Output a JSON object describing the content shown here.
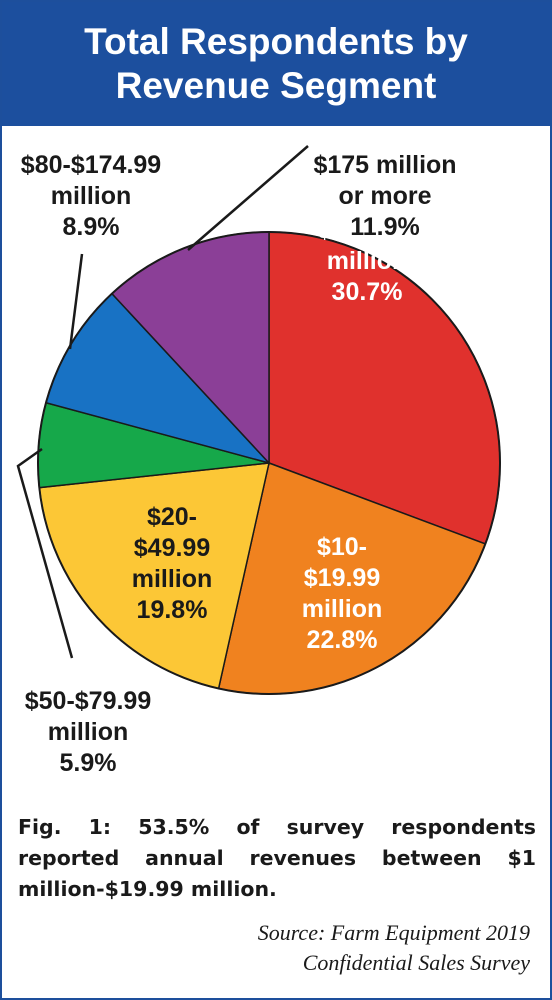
{
  "header": {
    "title": "Total Respondents by Revenue Segment"
  },
  "chart_data": {
    "type": "pie",
    "title": "Total Respondents by Revenue Segment",
    "slices": [
      {
        "label": "$1-$9.99 million",
        "display": "$1-$9.99\nmillion\n30.7%",
        "value": 30.7,
        "color": "#e0312d",
        "text_color": "#ffffff"
      },
      {
        "label": "$10-$19.99 million",
        "display": "$10-\n$19.99\nmillion\n22.8%",
        "value": 22.8,
        "color": "#f0821f",
        "text_color": "#ffffff"
      },
      {
        "label": "$20-$49.99 million",
        "display": "$20-\n$49.99\nmillion\n19.8%",
        "value": 19.8,
        "color": "#fcc736",
        "text_color": "#1a1a1a"
      },
      {
        "label": "$50-$79.99 million",
        "display": "$50-$79.99\nmillion\n5.9%",
        "value": 5.9,
        "color": "#16a84a",
        "text_color": "#1a1a1a"
      },
      {
        "label": "$80-$174.99 million",
        "display": "$80-$174.99\nmillion\n8.9%",
        "value": 8.9,
        "color": "#1872c4",
        "text_color": "#1a1a1a"
      },
      {
        "label": "$175 million or more",
        "display": "$175 million\nor more\n11.9%",
        "value": 11.9,
        "color": "#8b3f97",
        "text_color": "#1a1a1a"
      }
    ]
  },
  "caption": {
    "text": "Fig. 1: 53.5% of survey respondents reported annual revenues between $1 million-$19.99 million."
  },
  "source": {
    "text": "Source: Farm Equipment 2019\nConfidential Sales Survey"
  }
}
